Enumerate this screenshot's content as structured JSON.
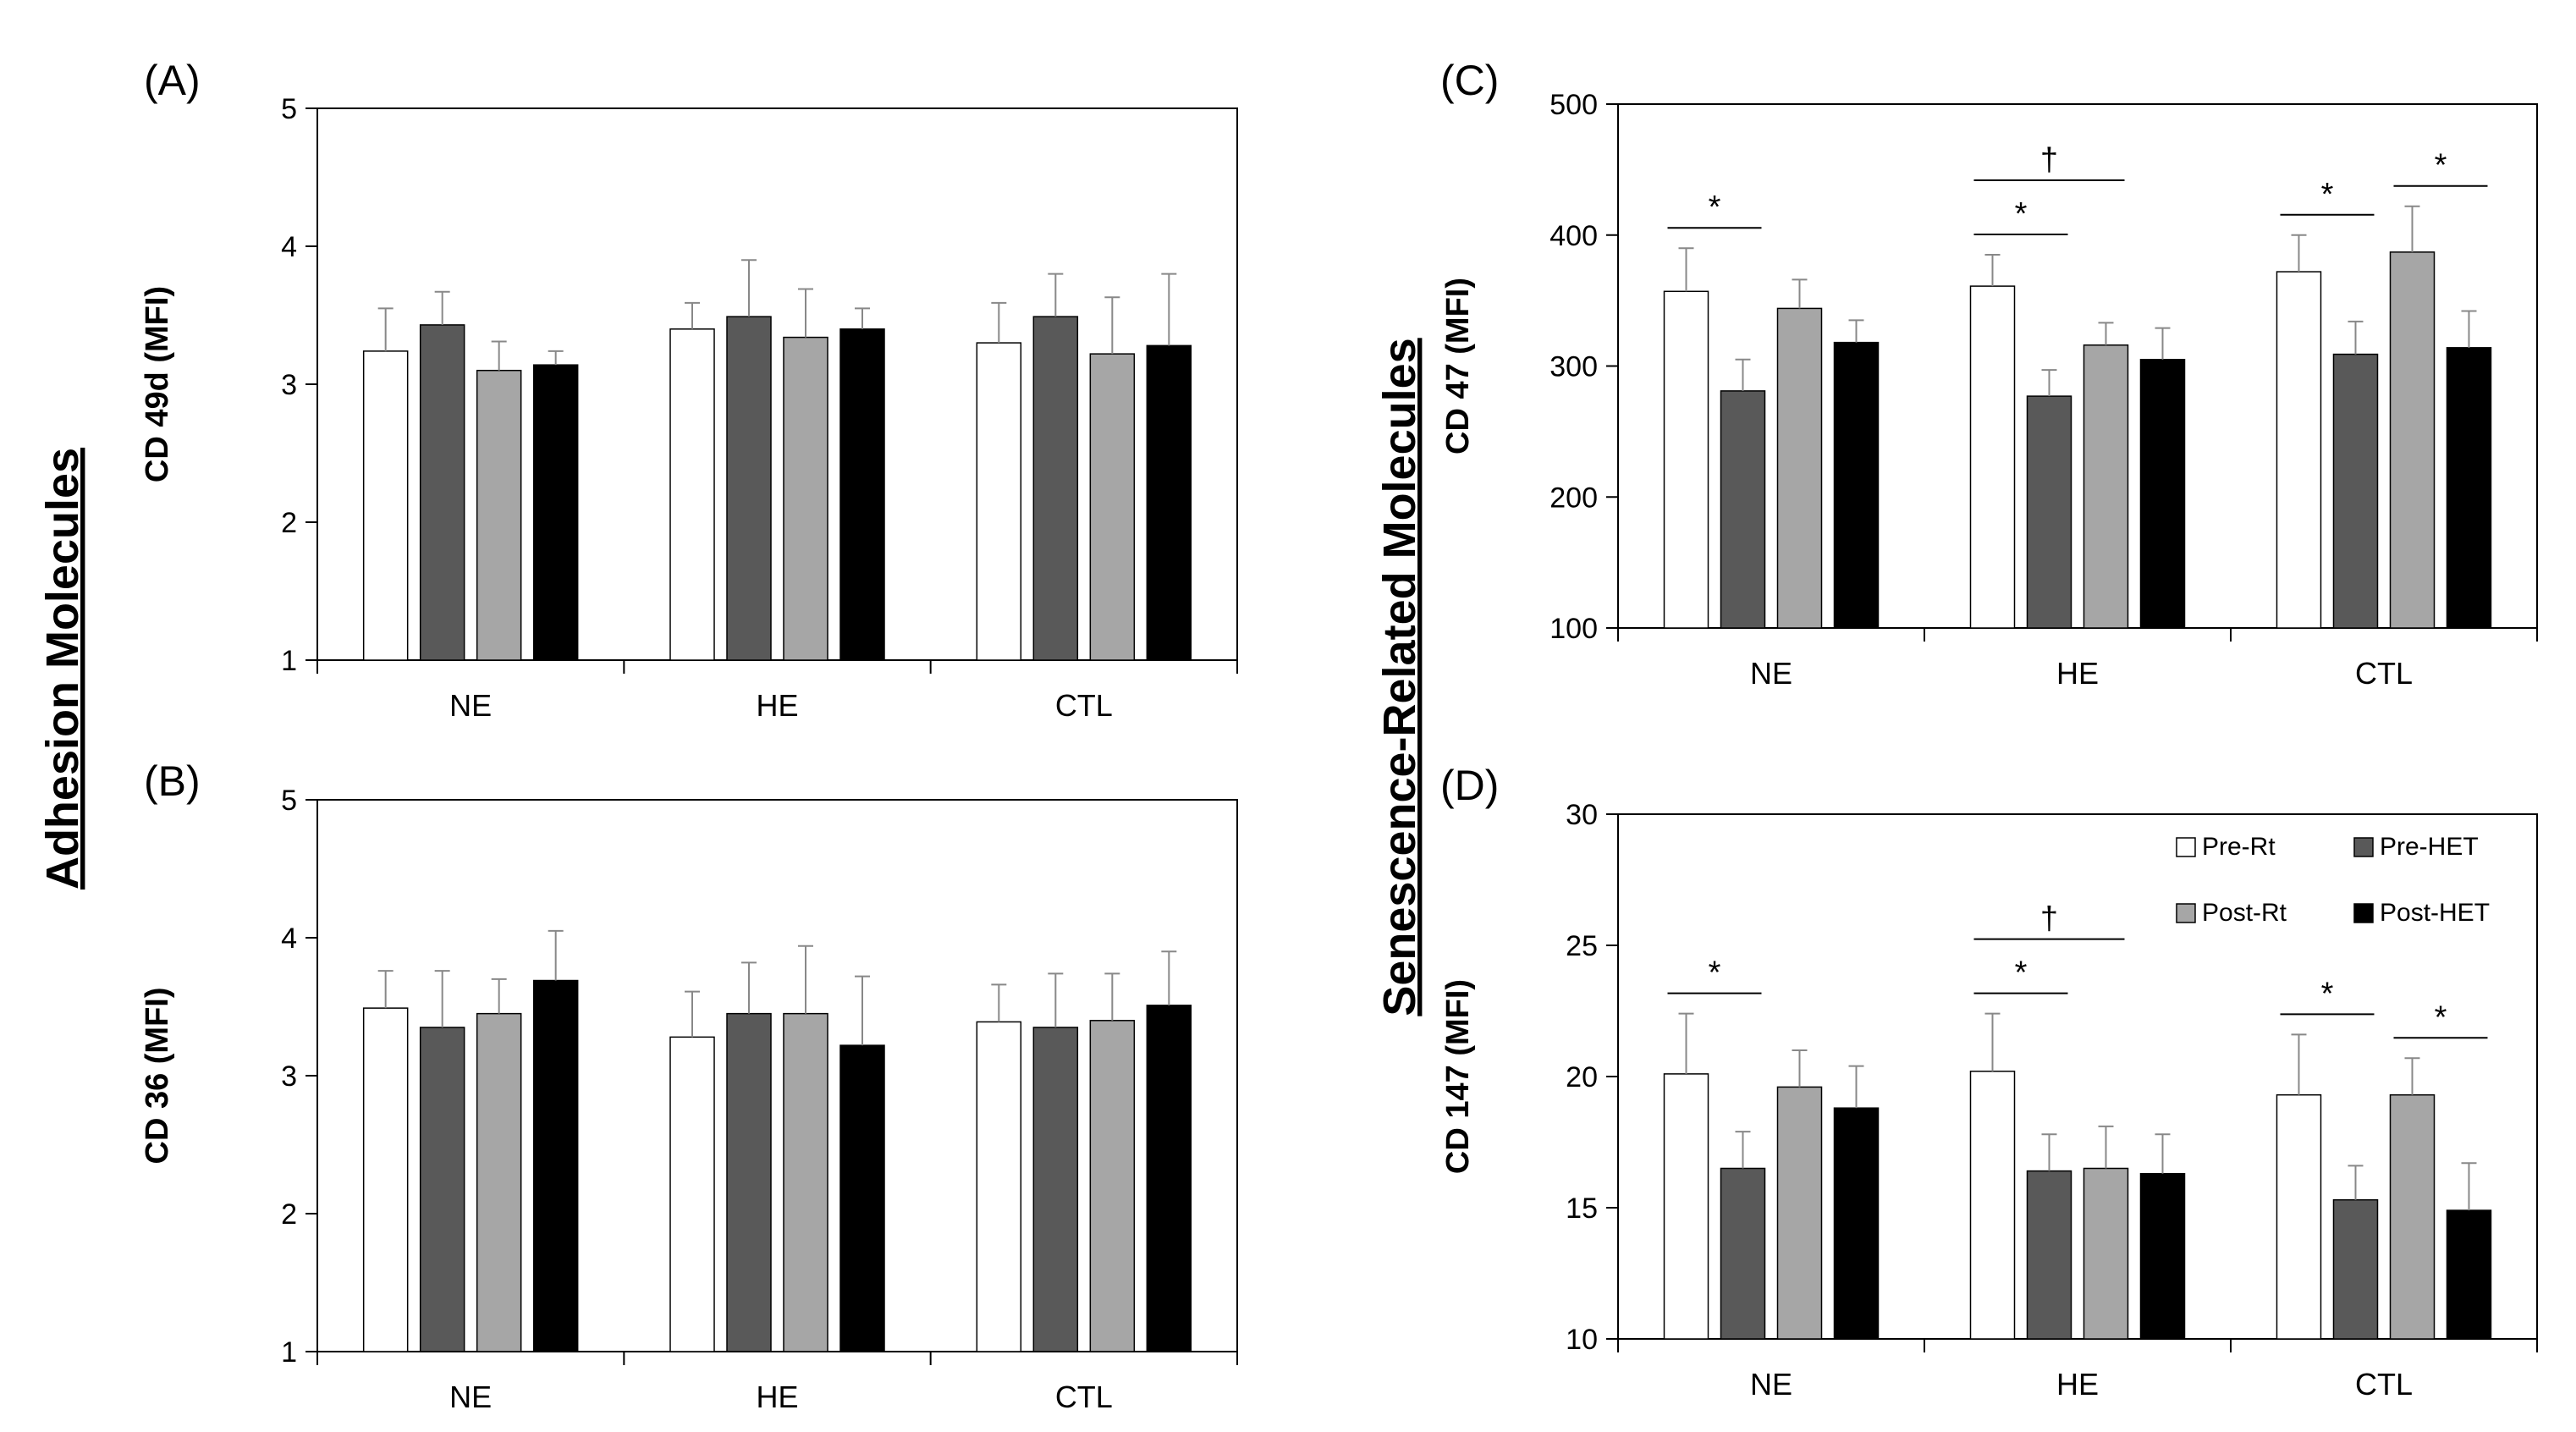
{
  "side_labels": {
    "left": "Adhesion Molecules",
    "right": "Senescence-Related Molecules"
  },
  "legend": [
    "Pre-Rt",
    "Pre-HET",
    "Post-Rt",
    "Post-HET"
  ],
  "series_colors": [
    "#ffffff",
    "#595959",
    "#a6a6a6",
    "#000000"
  ],
  "chart_data": [
    {
      "panel": "(A)",
      "type": "bar",
      "ylabel": "CD 49d (MFI)",
      "ylim": [
        1,
        5
      ],
      "yticks": [
        1,
        2,
        3,
        4,
        5
      ],
      "categories": [
        "NE",
        "HE",
        "CTL"
      ],
      "series": [
        {
          "name": "Pre-Rt",
          "values": [
            3.24,
            3.4,
            3.3
          ],
          "errors": [
            0.31,
            0.19,
            0.29
          ]
        },
        {
          "name": "Pre-HET",
          "values": [
            3.43,
            3.49,
            3.49
          ],
          "errors": [
            0.24,
            0.41,
            0.31
          ]
        },
        {
          "name": "Post-Rt",
          "values": [
            3.1,
            3.34,
            3.22
          ],
          "errors": [
            0.21,
            0.35,
            0.41
          ]
        },
        {
          "name": "Post-HET",
          "values": [
            3.14,
            3.4,
            3.28
          ],
          "errors": [
            0.1,
            0.15,
            0.52
          ]
        }
      ],
      "annotations": []
    },
    {
      "panel": "(B)",
      "type": "bar",
      "ylabel": "CD 36 (MFI)",
      "ylim": [
        1,
        5
      ],
      "yticks": [
        1,
        2,
        3,
        4,
        5
      ],
      "categories": [
        "NE",
        "HE",
        "CTL"
      ],
      "series": [
        {
          "name": "Pre-Rt",
          "values": [
            3.49,
            3.28,
            3.39
          ],
          "errors": [
            0.27,
            0.33,
            0.27
          ]
        },
        {
          "name": "Pre-HET",
          "values": [
            3.35,
            3.45,
            3.35
          ],
          "errors": [
            0.41,
            0.37,
            0.39
          ]
        },
        {
          "name": "Post-Rt",
          "values": [
            3.45,
            3.45,
            3.4
          ],
          "errors": [
            0.25,
            0.49,
            0.34
          ]
        },
        {
          "name": "Post-HET",
          "values": [
            3.69,
            3.22,
            3.51
          ],
          "errors": [
            0.36,
            0.5,
            0.39
          ]
        }
      ],
      "annotations": []
    },
    {
      "panel": "(C)",
      "type": "bar",
      "ylabel": "CD 47 (MFI)",
      "ylim": [
        100,
        500
      ],
      "yticks": [
        100,
        200,
        300,
        400,
        500
      ],
      "categories": [
        "NE",
        "HE",
        "CTL"
      ],
      "series": [
        {
          "name": "Pre-Rt",
          "values": [
            357,
            361,
            372
          ],
          "errors": [
            33,
            24,
            28
          ]
        },
        {
          "name": "Pre-HET",
          "values": [
            281,
            277,
            309
          ],
          "errors": [
            24,
            20,
            25
          ]
        },
        {
          "name": "Post-Rt",
          "values": [
            344,
            316,
            387
          ],
          "errors": [
            22,
            17,
            35
          ]
        },
        {
          "name": "Post-HET",
          "values": [
            318,
            305,
            314
          ],
          "errors": [
            17,
            24,
            28
          ]
        }
      ],
      "annotations": [
        {
          "text": "*",
          "category": 0,
          "from": 0,
          "to": 1,
          "level": 1
        },
        {
          "text": "†",
          "category": 1,
          "from": 0,
          "to": 2,
          "level": 2
        },
        {
          "text": "*",
          "category": 1,
          "from": 0,
          "to": 1,
          "level": 1
        },
        {
          "text": "*",
          "category": 2,
          "from": 0,
          "to": 1,
          "level": 1
        },
        {
          "text": "*",
          "category": 2,
          "from": 2,
          "to": 3,
          "level": 1
        }
      ]
    },
    {
      "panel": "(D)",
      "type": "bar",
      "ylabel": "CD 147 (MFI)",
      "ylim": [
        10,
        30
      ],
      "yticks": [
        10,
        15,
        20,
        25,
        30
      ],
      "categories": [
        "NE",
        "HE",
        "CTL"
      ],
      "series": [
        {
          "name": "Pre-Rt",
          "values": [
            20.1,
            20.2,
            19.3
          ],
          "errors": [
            2.3,
            2.2,
            2.3
          ]
        },
        {
          "name": "Pre-HET",
          "values": [
            16.5,
            16.4,
            15.3
          ],
          "errors": [
            1.4,
            1.4,
            1.3
          ]
        },
        {
          "name": "Post-Rt",
          "values": [
            19.6,
            16.5,
            19.3
          ],
          "errors": [
            1.4,
            1.6,
            1.4
          ]
        },
        {
          "name": "Post-HET",
          "values": [
            18.8,
            16.3,
            14.9
          ],
          "errors": [
            1.6,
            1.5,
            1.8
          ]
        }
      ],
      "annotations": [
        {
          "text": "*",
          "category": 0,
          "from": 0,
          "to": 1,
          "level": 1
        },
        {
          "text": "†",
          "category": 1,
          "from": 0,
          "to": 2,
          "level": 2
        },
        {
          "text": "*",
          "category": 1,
          "from": 0,
          "to": 1,
          "level": 1
        },
        {
          "text": "*",
          "category": 2,
          "from": 0,
          "to": 1,
          "level": 1
        },
        {
          "text": "*",
          "category": 2,
          "from": 2,
          "to": 3,
          "level": 1
        }
      ]
    }
  ]
}
